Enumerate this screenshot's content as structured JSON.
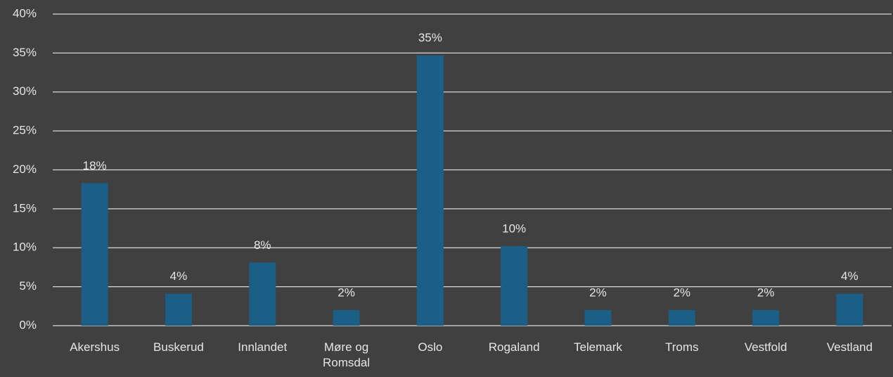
{
  "chart_data": {
    "type": "bar",
    "categories": [
      "Akershus",
      "Buskerud",
      "Innlandet",
      "Møre og Romsdal",
      "Oslo",
      "Rogaland",
      "Telemark",
      "Troms",
      "Vestfold",
      "Vestland"
    ],
    "values": [
      18.3,
      4.1,
      8.1,
      2.0,
      34.7,
      10.2,
      2.0,
      2.0,
      2.0,
      4.1
    ],
    "value_labels": [
      "18%",
      "4%",
      "8%",
      "2%",
      "35%",
      "10%",
      "2%",
      "2%",
      "2%",
      "4%"
    ],
    "color": "#1b5e86",
    "ylim": [
      0,
      40
    ],
    "yticks": [
      {
        "value": 0,
        "label": "0%"
      },
      {
        "value": 5,
        "label": "5%"
      },
      {
        "value": 10,
        "label": "10%"
      },
      {
        "value": 15,
        "label": "15%"
      },
      {
        "value": 20,
        "label": "20%"
      },
      {
        "value": 25,
        "label": "25%"
      },
      {
        "value": 30,
        "label": "30%"
      },
      {
        "value": 35,
        "label": "35%"
      },
      {
        "value": 40,
        "label": "40%"
      }
    ],
    "grid": true
  }
}
